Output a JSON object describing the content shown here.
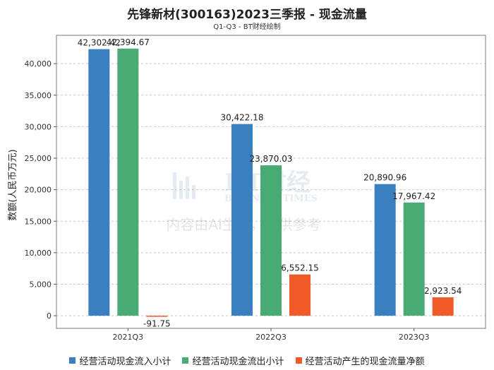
{
  "header": {
    "title": "先锋新材(300163)2023三季报 - 现金流量",
    "subtitle": "Q1-Q3 - BT财经绘制"
  },
  "watermark": {
    "brand": "BT财经",
    "brand_en": "BUSINESS TIMES",
    "notice": "内容由AI生成，仅供参考"
  },
  "colors": {
    "inflow": "#3a80c0",
    "outflow": "#4aaa73",
    "net": "#f05a28",
    "grid": "#c8c8c8"
  },
  "chart_data": {
    "type": "bar",
    "title": "先锋新材(300163)2023三季报 - 现金流量",
    "subtitle": "Q1-Q3 - BT财经绘制",
    "xlabel": "",
    "ylabel": "数额(人民币万元)",
    "ylim": [
      -2000,
      44500
    ],
    "yticks": [
      0,
      5000,
      10000,
      15000,
      20000,
      25000,
      30000,
      35000,
      40000
    ],
    "ytick_labels": [
      "0",
      "5,000",
      "10,000",
      "15,000",
      "20,000",
      "25,000",
      "30,000",
      "35,000",
      "40,000"
    ],
    "grid": true,
    "legend_position": "bottom",
    "categories": [
      "2021Q3",
      "2022Q3",
      "2023Q3"
    ],
    "series": [
      {
        "name": "经营活动现金流入小计",
        "color": "#3a80c0",
        "values": [
          42302.42,
          30422.18,
          20890.96
        ],
        "labels": [
          "42,302.42",
          "30,422.18",
          "20,890.96"
        ]
      },
      {
        "name": "经营活动现金流出小计",
        "color": "#4aaa73",
        "values": [
          42394.67,
          23870.03,
          17967.42
        ],
        "labels": [
          "42,394.67",
          "23,870.03",
          "17,967.42"
        ]
      },
      {
        "name": "经营活动产生的现金流量净额",
        "color": "#f05a28",
        "values": [
          -91.75,
          6552.15,
          2923.54
        ],
        "labels": [
          "-91.75",
          "6,552.15",
          "2,923.54"
        ]
      }
    ]
  }
}
